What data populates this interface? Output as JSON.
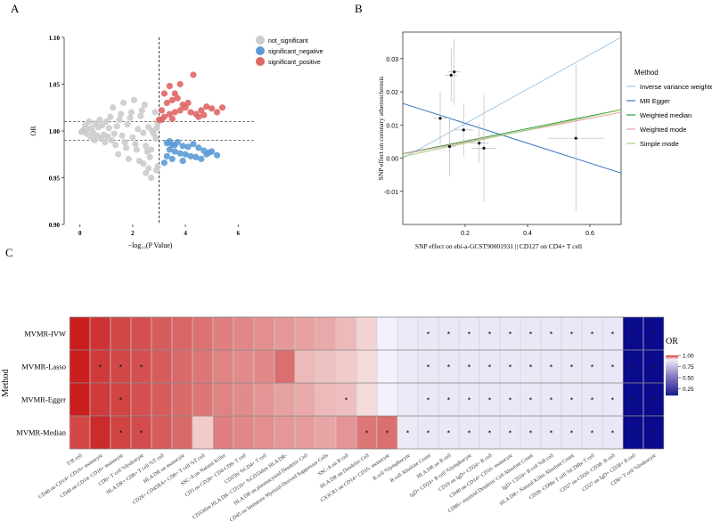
{
  "panel_labels": {
    "a": "A",
    "b": "B",
    "c": "C"
  },
  "chart_data": [
    {
      "type": "scatter",
      "panel": "A",
      "xlabel": "−log₁₀(P Value)",
      "ylabel": "OR",
      "xlim": [
        -0.6,
        6.6
      ],
      "ylim": [
        0.9,
        1.1
      ],
      "x_ticks": [
        0,
        2,
        4,
        6
      ],
      "y_ticks": [
        0.9,
        0.95,
        1.0,
        1.05,
        1.1
      ],
      "y_tick_labels": [
        "0.90",
        "0.95",
        "1.00",
        "1.05",
        "1.10"
      ],
      "x_tick_labels": [
        "0",
        "2",
        "4",
        "6"
      ],
      "threshold_x": 3.0,
      "threshold_y": [
        1.01,
        0.99
      ],
      "legend_position": "top-right",
      "colors": {
        "not_significant": "#cccccc",
        "significant_negative": "#5b9bd5",
        "significant_positive": "#e06666"
      },
      "series": [
        {
          "name": "not_significant",
          "points": [
            [
              0.1,
              1.0
            ],
            [
              0.3,
              1.002
            ],
            [
              0.5,
              0.998
            ],
            [
              0.7,
              1.004
            ],
            [
              0.9,
              0.996
            ],
            [
              1.1,
              1.003
            ],
            [
              1.3,
              0.997
            ],
            [
              0.2,
              1.006
            ],
            [
              0.4,
              0.994
            ],
            [
              0.6,
              1.008
            ],
            [
              0.8,
              0.992
            ],
            [
              1.0,
              1.01
            ],
            [
              1.2,
              0.99
            ],
            [
              1.4,
              1.005
            ],
            [
              1.6,
              0.995
            ],
            [
              1.8,
              1.007
            ],
            [
              2.0,
              0.993
            ],
            [
              2.2,
              1.002
            ],
            [
              2.4,
              0.998
            ],
            [
              2.6,
              1.004
            ],
            [
              1.5,
              1.012
            ],
            [
              1.7,
              0.988
            ],
            [
              1.9,
              1.014
            ],
            [
              2.1,
              0.986
            ],
            [
              2.3,
              1.016
            ],
            [
              2.5,
              0.984
            ],
            [
              0.35,
              1.01
            ],
            [
              0.55,
              0.99
            ],
            [
              0.75,
              1.012
            ],
            [
              0.95,
              0.988
            ],
            [
              1.15,
              1.015
            ],
            [
              1.35,
              0.985
            ],
            [
              1.55,
              1.018
            ],
            [
              1.75,
              0.982
            ],
            [
              1.95,
              1.02
            ],
            [
              2.15,
              0.98
            ],
            [
              2.35,
              1.022
            ],
            [
              2.55,
              0.978
            ],
            [
              2.75,
              1.0
            ],
            [
              2.9,
              1.003
            ],
            [
              2.8,
              0.997
            ],
            [
              1.25,
              1.025
            ],
            [
              1.45,
              0.975
            ],
            [
              1.65,
              1.03
            ],
            [
              1.85,
              0.97
            ],
            [
              2.05,
              1.033
            ],
            [
              2.25,
              0.968
            ],
            [
              2.45,
              1.028
            ],
            [
              2.65,
              0.972
            ],
            [
              2.85,
              1.02
            ],
            [
              2.7,
              0.98
            ],
            [
              0.05,
              0.999
            ],
            [
              0.15,
              1.001
            ],
            [
              0.25,
              0.997
            ],
            [
              0.45,
              1.003
            ],
            [
              0.65,
              0.995
            ],
            [
              0.85,
              1.006
            ],
            [
              1.05,
              0.994
            ],
            [
              2.95,
              1.008
            ],
            [
              2.88,
              0.992
            ],
            [
              2.6,
              0.96
            ],
            [
              2.9,
              0.958
            ],
            [
              2.7,
              0.95
            ],
            [
              2.4,
              0.965
            ],
            [
              2.5,
              0.955
            ],
            [
              2.95,
              0.962
            ]
          ]
        },
        {
          "name": "significant_negative",
          "points": [
            [
              3.3,
              0.987
            ],
            [
              3.5,
              0.985
            ],
            [
              3.7,
              0.988
            ],
            [
              3.9,
              0.984
            ],
            [
              4.1,
              0.983
            ],
            [
              4.3,
              0.986
            ],
            [
              4.5,
              0.982
            ],
            [
              4.7,
              0.979
            ],
            [
              4.9,
              0.977
            ],
            [
              3.4,
              0.98
            ],
            [
              3.6,
              0.978
            ],
            [
              3.8,
              0.976
            ],
            [
              4.0,
              0.975
            ],
            [
              4.2,
              0.973
            ],
            [
              4.4,
              0.972
            ],
            [
              3.5,
              0.97
            ],
            [
              3.3,
              0.973
            ],
            [
              3.9,
              0.968
            ],
            [
              4.6,
              0.97
            ],
            [
              4.8,
              0.975
            ],
            [
              5.0,
              0.978
            ],
            [
              5.2,
              0.974
            ],
            [
              3.2,
              0.966
            ],
            [
              3.6,
              0.985
            ],
            [
              3.4,
              0.989
            ]
          ]
        },
        {
          "name": "significant_positive",
          "points": [
            [
              3.1,
              1.012
            ],
            [
              3.2,
              1.015
            ],
            [
              3.4,
              1.018
            ],
            [
              3.6,
              1.02
            ],
            [
              3.8,
              1.022
            ],
            [
              4.0,
              1.025
            ],
            [
              4.2,
              1.02
            ],
            [
              4.4,
              1.018
            ],
            [
              4.6,
              1.022
            ],
            [
              4.8,
              1.026
            ],
            [
              5.0,
              1.024
            ],
            [
              5.2,
              1.02
            ],
            [
              5.4,
              1.025
            ],
            [
              3.3,
              1.03
            ],
            [
              3.5,
              1.033
            ],
            [
              3.7,
              1.035
            ],
            [
              3.9,
              1.028
            ],
            [
              4.1,
              1.03
            ],
            [
              3.2,
              1.04
            ],
            [
              3.4,
              1.048
            ],
            [
              3.8,
              1.05
            ],
            [
              4.3,
              1.06
            ],
            [
              3.6,
              1.04
            ],
            [
              3.0,
              1.012
            ],
            [
              3.1,
              1.022
            ],
            [
              4.5,
              1.015
            ],
            [
              4.7,
              1.017
            ],
            [
              3.5,
              1.013
            ]
          ]
        }
      ]
    },
    {
      "type": "scatter",
      "panel": "B",
      "xlabel": "SNP effect on ebi-a-GCST90001931  || CD127 on CD4+ T cell",
      "ylabel": "SNP effect on coronary atherosclerosis",
      "xlim": [
        0.0,
        0.7
      ],
      "ylim": [
        -0.02,
        0.038
      ],
      "x_ticks": [
        0.2,
        0.4,
        0.6
      ],
      "x_tick_labels": [
        "0.2",
        "0.4",
        "0.6"
      ],
      "y_ticks": [
        -0.01,
        0.0,
        0.01,
        0.02,
        0.03
      ],
      "y_tick_labels": [
        "-0.01",
        "0.00",
        "0.01",
        "0.02",
        "0.03"
      ],
      "legend_title": "Method",
      "legend_position": "right",
      "points": [
        {
          "x": 0.12,
          "y": 0.012,
          "xerr": 0.02,
          "yerr": 0.008
        },
        {
          "x": 0.15,
          "y": 0.0035,
          "xerr": 0.02,
          "yerr": 0.009
        },
        {
          "x": 0.155,
          "y": 0.025,
          "xerr": 0.02,
          "yerr": 0.008
        },
        {
          "x": 0.165,
          "y": 0.026,
          "xerr": 0.02,
          "yerr": 0.01
        },
        {
          "x": 0.195,
          "y": 0.0085,
          "xerr": 0.03,
          "yerr": 0.008
        },
        {
          "x": 0.245,
          "y": 0.0045,
          "xerr": 0.03,
          "yerr": 0.006
        },
        {
          "x": 0.26,
          "y": 0.003,
          "xerr": 0.04,
          "yerr": 0.016
        },
        {
          "x": 0.555,
          "y": 0.006,
          "xerr": 0.09,
          "yerr": 0.022
        }
      ],
      "series": [
        {
          "name": "Inverse variance weighted",
          "slope": 0.052,
          "intercept": 0.0,
          "color": "#9ec9e8"
        },
        {
          "name": "MR Egger",
          "slope": -0.03,
          "intercept": 0.0165,
          "color": "#3a78c2"
        },
        {
          "name": "Weighted median",
          "slope": 0.019,
          "intercept": 0.0013,
          "color": "#2e9a3a"
        },
        {
          "name": "Weighted mode",
          "slope": 0.018,
          "intercept": 0.0012,
          "color": "#e8a0a0"
        },
        {
          "name": "Simple mode",
          "slope": 0.02,
          "intercept": 0.0005,
          "color": "#9fd07a"
        }
      ]
    },
    {
      "type": "heatmap",
      "panel": "C",
      "ylabel": "Method",
      "legend_title": "OR",
      "legend_ticks": [
        0.25,
        0.5,
        0.75,
        1.0
      ],
      "legend_tick_labels": [
        "0.25",
        "0.50",
        "0.75",
        "1.00"
      ],
      "legend_position": "right",
      "rows": [
        "MVMR-IVW",
        "MVMR-Lasso",
        "MVMR-Egger",
        "MVMR-Median"
      ],
      "columns": [
        "T/B cell",
        "CD40 on CD14+ CD16+ monocyte",
        "CD40 on CD14- CD16+ monocyte",
        "CD8+ T cell %leukocyte",
        "HLA DR+ CD8+ T cell %T cell",
        "HLA DR on monocyte",
        "CD28+ CD45RA+ CD8+ T cell %T cell",
        "SSC-A on Natural Killer",
        "CD3 on CD28+ CD4-CD8- T cell",
        "CD25hi %CD4+ T cell",
        "CD33dim HLA DR- CD11b+ %CD33dim HLA DR-",
        "HLA DR on plasmacytoid Dendritic Cell",
        "CD45 on Immature Myeloid-Derived Suppressor Cells",
        "SSC-A on B cell",
        "HLA DR on Dendritic Cell",
        "CX3CR1 on CD14+ CD16- monocyte",
        "B cell %lymphocyte",
        "B cell Absolute Count",
        "HLA DR on B cell",
        "IgD+ CD24+ B cell %lymphocyte",
        "CD19 on IgD+ CD24+ B cell",
        "CD40 on CD14+ CD16- monocyte",
        "CD86+ myeloid Dendritic Cell Absolute Count",
        "IgD+ CD24+ B cell %B cell",
        "HLA DR+ Natural Killer Absolute Count",
        "CD28- CD8br T cell %CD8br T cell",
        "CD27 on CD20- CD38- B cell",
        "CD27 on IgD+ CD38+ B cell",
        "CD8+ T cell %leukocyte"
      ],
      "values": [
        [
          1.45,
          1.4,
          1.35,
          1.33,
          1.3,
          1.28,
          1.25,
          1.22,
          1.2,
          1.18,
          1.16,
          1.14,
          1.12,
          1.08,
          1.02,
          0.99,
          0.96,
          0.955,
          0.955,
          0.955,
          0.955,
          0.955,
          0.955,
          0.955,
          0.955,
          0.955,
          0.955,
          0.1,
          0.1
        ],
        [
          1.45,
          1.38,
          1.35,
          1.33,
          1.3,
          1.27,
          1.24,
          1.21,
          1.19,
          1.2,
          1.26,
          1.08,
          1.06,
          1.04,
          1.0,
          0.99,
          0.96,
          0.955,
          0.955,
          0.955,
          0.955,
          0.955,
          0.955,
          0.955,
          0.955,
          0.955,
          0.955,
          0.1,
          0.1
        ],
        [
          1.45,
          1.38,
          1.36,
          1.33,
          1.3,
          1.27,
          1.24,
          1.21,
          1.19,
          1.17,
          1.14,
          1.12,
          1.08,
          1.07,
          1.0,
          0.99,
          0.96,
          0.955,
          0.955,
          0.955,
          0.955,
          0.955,
          0.955,
          0.955,
          0.955,
          0.955,
          0.955,
          0.1,
          0.1
        ],
        [
          1.35,
          1.42,
          1.36,
          1.34,
          1.3,
          1.27,
          1.04,
          1.22,
          1.2,
          1.18,
          1.16,
          1.15,
          1.13,
          1.17,
          1.24,
          1.26,
          0.96,
          0.955,
          0.955,
          0.955,
          0.955,
          0.955,
          0.955,
          0.955,
          0.955,
          0.955,
          0.955,
          0.1,
          0.1
        ]
      ],
      "significance_marks": [
        [
          0,
          17
        ],
        [
          0,
          18
        ],
        [
          0,
          19
        ],
        [
          0,
          20
        ],
        [
          0,
          21
        ],
        [
          0,
          22
        ],
        [
          0,
          23
        ],
        [
          0,
          24
        ],
        [
          0,
          25
        ],
        [
          0,
          26
        ],
        [
          0,
          27
        ],
        [
          0,
          28
        ],
        [
          1,
          1
        ],
        [
          1,
          2
        ],
        [
          1,
          3
        ],
        [
          1,
          17
        ],
        [
          1,
          18
        ],
        [
          1,
          19
        ],
        [
          1,
          20
        ],
        [
          1,
          21
        ],
        [
          1,
          22
        ],
        [
          1,
          23
        ],
        [
          1,
          24
        ],
        [
          1,
          25
        ],
        [
          1,
          26
        ],
        [
          1,
          27
        ],
        [
          1,
          28
        ],
        [
          2,
          2
        ],
        [
          2,
          13
        ],
        [
          2,
          17
        ],
        [
          2,
          18
        ],
        [
          2,
          19
        ],
        [
          2,
          20
        ],
        [
          2,
          21
        ],
        [
          2,
          22
        ],
        [
          2,
          23
        ],
        [
          2,
          24
        ],
        [
          2,
          25
        ],
        [
          2,
          26
        ],
        [
          2,
          27
        ],
        [
          2,
          28
        ],
        [
          3,
          2
        ],
        [
          3,
          3
        ],
        [
          3,
          14
        ],
        [
          3,
          15
        ],
        [
          3,
          16
        ],
        [
          3,
          17
        ],
        [
          3,
          18
        ],
        [
          3,
          19
        ],
        [
          3,
          20
        ],
        [
          3,
          21
        ],
        [
          3,
          22
        ],
        [
          3,
          23
        ],
        [
          3,
          24
        ],
        [
          3,
          25
        ],
        [
          3,
          26
        ],
        [
          3,
          27
        ],
        [
          3,
          28
        ]
      ],
      "mark_symbol": "*"
    }
  ]
}
